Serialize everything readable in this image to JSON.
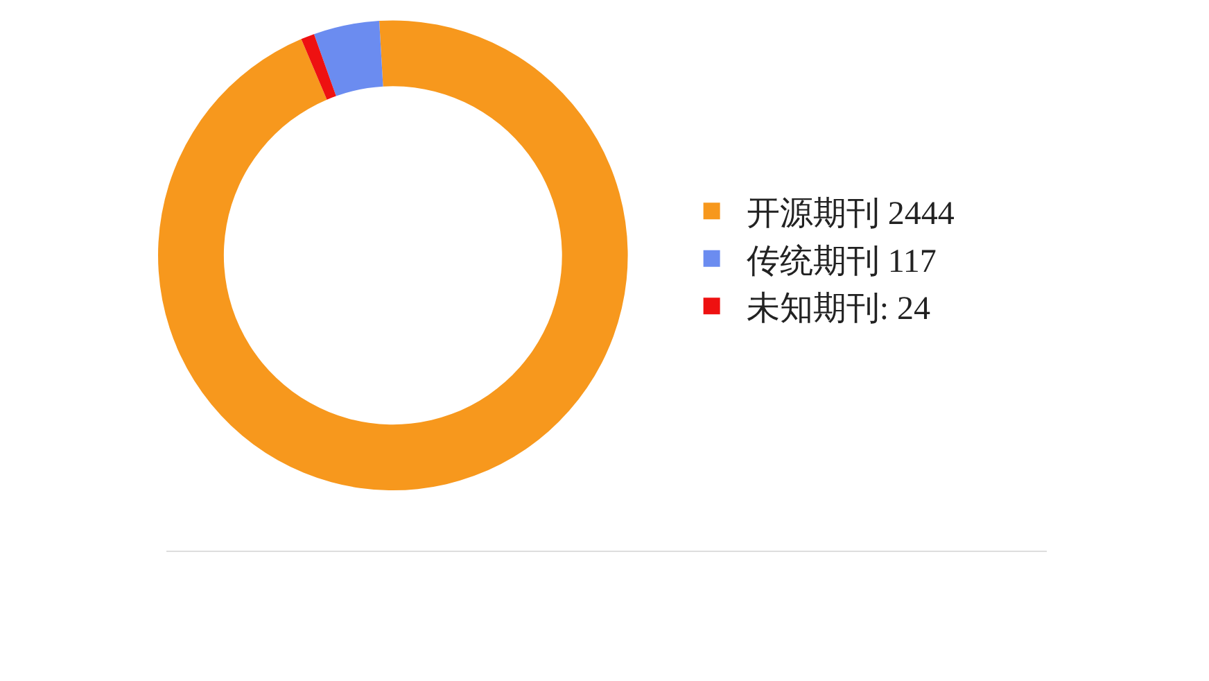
{
  "chart_data": {
    "type": "donut",
    "categories": [
      "开源期刊 2444",
      "传统期刊 117",
      "未知期刊: 24"
    ],
    "values": [
      2444,
      117,
      24
    ],
    "colors": [
      "#f7981d",
      "#6b8cf0",
      "#ee1111"
    ],
    "legend": "right"
  }
}
